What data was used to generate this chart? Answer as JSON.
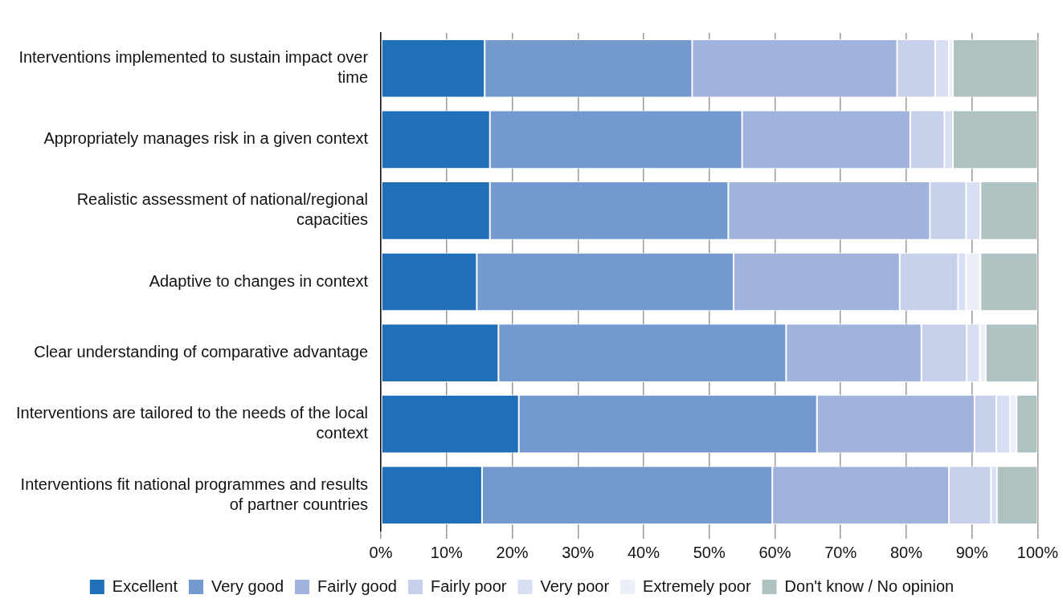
{
  "chart_data": {
    "type": "bar",
    "orientation": "horizontal",
    "stacked": true,
    "categories": [
      "Interventions implemented to sustain impact over time",
      "Appropriately manages risk in a given context",
      "Realistic assessment of national/regional capacities",
      "Adaptive to changes in context",
      "Clear understanding of comparative advantage",
      "Interventions are tailored to the needs of the local context",
      "Interventions fit national programmes and results of partner countries"
    ],
    "series": [
      {
        "name": "Excellent",
        "color": "#1f70b8",
        "values": [
          15.8,
          16.6,
          16.6,
          14.6,
          17.9,
          21.0,
          15.4
        ]
      },
      {
        "name": "Very good",
        "color": "#7499cf",
        "values": [
          31.6,
          38.4,
          36.3,
          39.1,
          43.8,
          45.4,
          44.2
        ]
      },
      {
        "name": "Fairly good",
        "color": "#a0b3dc",
        "values": [
          31.2,
          25.6,
          30.7,
          25.3,
          20.6,
          24.0,
          26.9
        ]
      },
      {
        "name": "Fairly poor",
        "color": "#c7d1eb",
        "values": [
          5.8,
          5.2,
          5.5,
          8.9,
          6.9,
          3.3,
          6.4
        ]
      },
      {
        "name": "Very poor",
        "color": "#d9dff2",
        "values": [
          2.1,
          1.3,
          2.2,
          1.2,
          2.0,
          2.1,
          0.9
        ]
      },
      {
        "name": "Extremely poor",
        "color": "#ebeff8",
        "values": [
          0.6,
          0,
          0,
          2.2,
          0.9,
          1.0,
          0
        ]
      },
      {
        "name": "Don't know / No opinion",
        "color": "#aec2c1",
        "values": [
          12.9,
          12.9,
          8.7,
          8.7,
          7.9,
          3.2,
          6.2
        ]
      }
    ],
    "xlim": [
      0,
      100
    ],
    "xticks": [
      {
        "value": 0,
        "label": "0%"
      },
      {
        "value": 10,
        "label": "10%"
      },
      {
        "value": 20,
        "label": "20%"
      },
      {
        "value": 30,
        "label": "30%"
      },
      {
        "value": 40,
        "label": "40%"
      },
      {
        "value": 50,
        "label": "50%"
      },
      {
        "value": 60,
        "label": "60%"
      },
      {
        "value": 70,
        "label": "70%"
      },
      {
        "value": 80,
        "label": "80%"
      },
      {
        "value": 90,
        "label": "90%"
      },
      {
        "value": 100,
        "label": "100%"
      }
    ],
    "grid": "x",
    "legend": "bottom"
  }
}
